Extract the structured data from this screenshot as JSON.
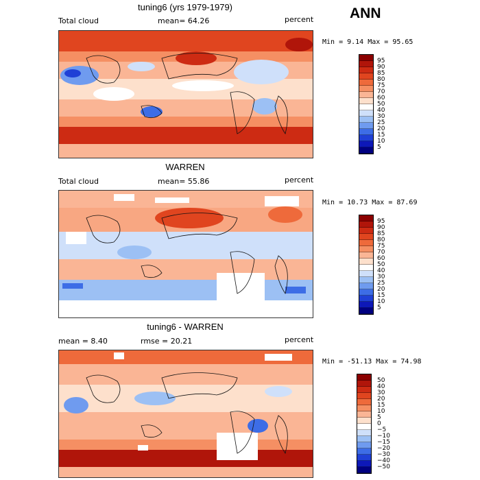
{
  "season": "ANN",
  "panels": [
    {
      "title": "tuning6 (yrs 1979-1979)",
      "left_label": "Total cloud",
      "mid_label": "mean=  64.26",
      "right_label": "percent",
      "minmax": "Min =   9.14 Max =  95.65",
      "colorbar": {
        "ticks": [
          "95",
          "90",
          "85",
          "80",
          "75",
          "70",
          "60",
          "50",
          "40",
          "30",
          "25",
          "20",
          "15",
          "10",
          "5"
        ],
        "colors": [
          "#8b0000",
          "#b0150a",
          "#cd2b13",
          "#e0451f",
          "#ee6a3b",
          "#f58f63",
          "#fab595",
          "#fde0cc",
          "#ffffff",
          "#cfe0fa",
          "#9cc0f4",
          "#6f9bef",
          "#3d6de6",
          "#1f40d6",
          "#0d18b8",
          "#000080"
        ]
      },
      "map": {
        "mean_value": 64.26,
        "min_value": 9.14,
        "max_value": 95.65
      }
    },
    {
      "title": "WARREN",
      "left_label": "Total cloud",
      "mid_label": "mean=  55.86",
      "right_label": "percent",
      "minmax": "Min =  10.73 Max =  87.69",
      "colorbar": {
        "ticks": [
          "95",
          "90",
          "85",
          "80",
          "75",
          "70",
          "60",
          "50",
          "40",
          "30",
          "25",
          "20",
          "15",
          "10",
          "5"
        ],
        "colors": [
          "#8b0000",
          "#b0150a",
          "#cd2b13",
          "#e0451f",
          "#ee6a3b",
          "#f58f63",
          "#fab595",
          "#fde0cc",
          "#ffffff",
          "#cfe0fa",
          "#9cc0f4",
          "#6f9bef",
          "#3d6de6",
          "#1f40d6",
          "#0d18b8",
          "#000080"
        ]
      },
      "map": {
        "mean_value": 55.86,
        "min_value": 10.73,
        "max_value": 87.69
      }
    },
    {
      "title": "tuning6 - WARREN",
      "left_label": "mean =   8.40",
      "mid_label": "rmse =  20.21",
      "right_label": "percent",
      "minmax": "Min = -51.13 Max =  74.98",
      "colorbar": {
        "ticks": [
          "50",
          "40",
          "30",
          "20",
          "15",
          "10",
          "5",
          "0",
          "−5",
          "−10",
          "−15",
          "−20",
          "−30",
          "−40",
          "−50"
        ],
        "colors": [
          "#8b0000",
          "#b0150a",
          "#cd2b13",
          "#e0451f",
          "#ee6a3b",
          "#f58f63",
          "#fab595",
          "#fde0cc",
          "#ffffff",
          "#cfe0fa",
          "#9cc0f4",
          "#6f9bef",
          "#3d6de6",
          "#1f40d6",
          "#0d18b8",
          "#000080"
        ]
      },
      "map": {
        "mean_value": 8.4,
        "rmse_value": 20.21,
        "min_value": -51.13,
        "max_value": 74.98
      }
    }
  ]
}
